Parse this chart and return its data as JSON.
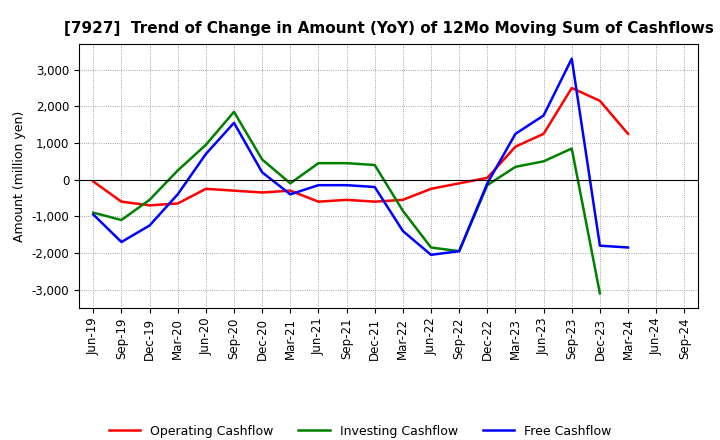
{
  "title": "[7927]  Trend of Change in Amount (YoY) of 12Mo Moving Sum of Cashflows",
  "ylabel": "Amount (million yen)",
  "x_labels": [
    "Jun-19",
    "Sep-19",
    "Dec-19",
    "Mar-20",
    "Jun-20",
    "Sep-20",
    "Dec-20",
    "Mar-21",
    "Jun-21",
    "Sep-21",
    "Dec-21",
    "Mar-22",
    "Jun-22",
    "Sep-22",
    "Dec-22",
    "Mar-23",
    "Jun-23",
    "Sep-23",
    "Dec-23",
    "Mar-24",
    "Jun-24",
    "Sep-24"
  ],
  "operating": [
    -50,
    -600,
    -700,
    -650,
    -250,
    -300,
    -350,
    -300,
    -600,
    -550,
    -600,
    -550,
    -250,
    -100,
    50,
    900,
    1250,
    2500,
    2150,
    1250,
    null,
    null
  ],
  "investing": [
    -900,
    -1100,
    -550,
    250,
    950,
    1850,
    550,
    -100,
    450,
    450,
    400,
    -850,
    -1850,
    -1950,
    -150,
    350,
    500,
    850,
    -3100,
    null,
    null,
    null
  ],
  "free": [
    -950,
    -1700,
    -1250,
    -400,
    700,
    1550,
    200,
    -400,
    -150,
    -150,
    -200,
    -1400,
    -2050,
    -1950,
    -100,
    1250,
    1750,
    3300,
    -1800,
    -1850,
    null,
    null
  ],
  "colors": {
    "operating": "#FF0000",
    "investing": "#008000",
    "free": "#0000FF"
  },
  "ylim": [
    -3500,
    3700
  ],
  "yticks": [
    -3000,
    -2000,
    -1000,
    0,
    1000,
    2000,
    3000
  ],
  "legend_labels": [
    "Operating Cashflow",
    "Investing Cashflow",
    "Free Cashflow"
  ],
  "background_color": "#FFFFFF",
  "plot_bg_color": "#FFFFFF",
  "title_fontsize": 11,
  "axis_fontsize": 8.5,
  "ylabel_fontsize": 9,
  "linewidth": 1.8
}
